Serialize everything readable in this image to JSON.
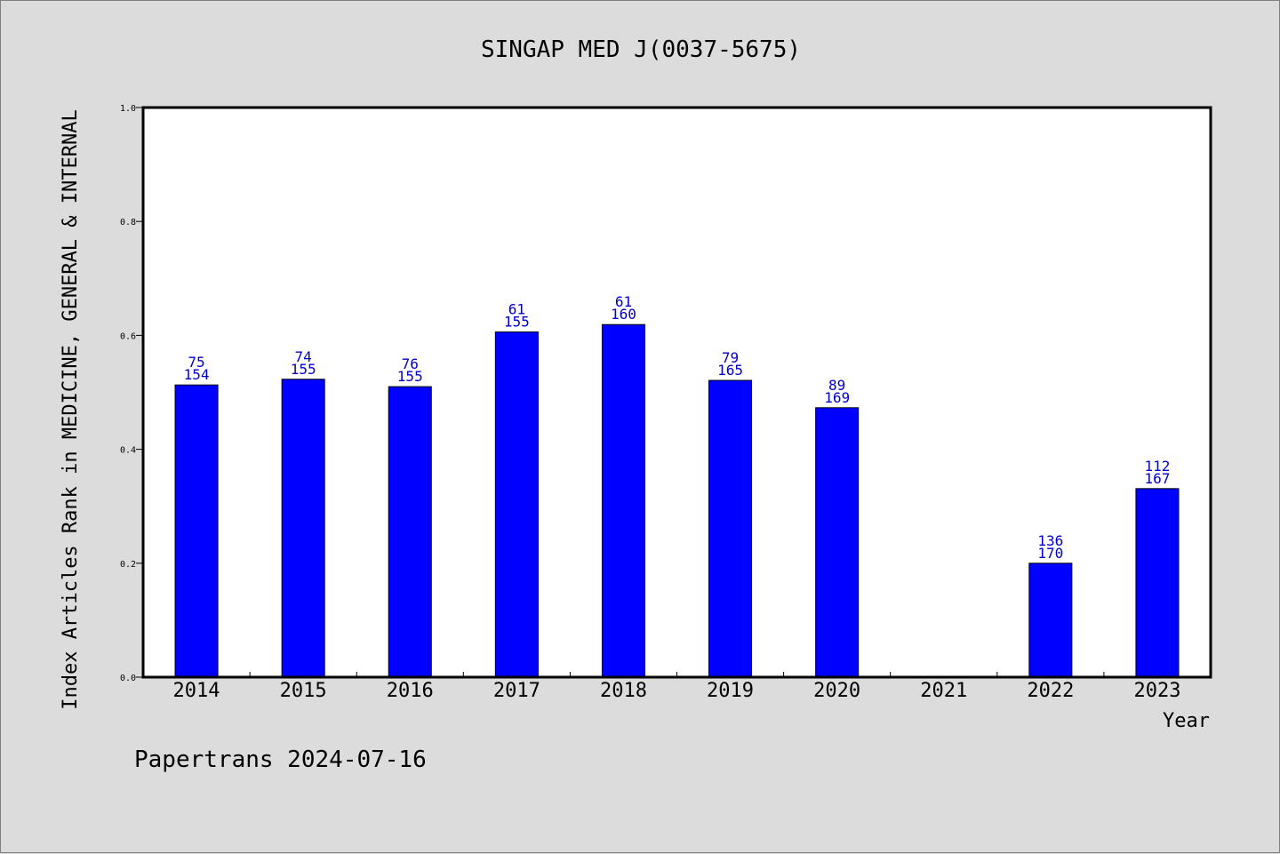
{
  "chart_data": {
    "type": "bar",
    "title": "SINGAP MED J(0037-5675)",
    "xlabel": "Year",
    "ylabel": "Index Articles Rank in MEDICINE, GENERAL & INTERNAL",
    "ylim": [
      0,
      1.0
    ],
    "yticks": [
      "0.0",
      "0.2",
      "0.4",
      "0.6",
      "0.8",
      "1.0"
    ],
    "categories": [
      "2014",
      "2015",
      "2016",
      "2017",
      "2018",
      "2019",
      "2020",
      "2021",
      "2022",
      "2023"
    ],
    "values": [
      0.513,
      0.523,
      0.51,
      0.606,
      0.619,
      0.521,
      0.473,
      null,
      0.2,
      0.331
    ],
    "rank": [
      "75",
      "74",
      "76",
      "61",
      "61",
      "79",
      "89",
      "",
      "136",
      "112"
    ],
    "total": [
      "154",
      "155",
      "155",
      "155",
      "160",
      "165",
      "169",
      "",
      "170",
      "167"
    ],
    "bar_color": "#0000ff",
    "label_color": "#0000cc",
    "background": "#dcdcdc",
    "plot_background": "#ffffff",
    "grid": false
  },
  "footer": "Papertrans 2024-07-16"
}
